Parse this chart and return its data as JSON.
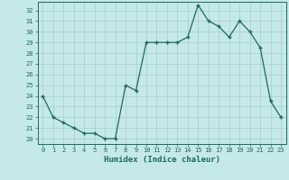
{
  "x": [
    0,
    1,
    2,
    3,
    4,
    5,
    6,
    7,
    8,
    9,
    10,
    11,
    12,
    13,
    14,
    15,
    16,
    17,
    18,
    19,
    20,
    21,
    22,
    23
  ],
  "y": [
    24,
    22,
    21.5,
    21,
    20.5,
    20.5,
    20,
    20,
    25,
    24.5,
    29,
    29,
    29,
    29,
    29.5,
    32.5,
    31,
    30.5,
    29.5,
    31,
    30,
    28.5,
    23.5,
    22
  ],
  "line_color": "#1a6b5e",
  "marker_color": "#1a6b5e",
  "bg_color": "#c5e8e8",
  "grid_color": "#a8cccc",
  "xlabel": "Humidex (Indice chaleur)",
  "ylabel_ticks": [
    20,
    21,
    22,
    23,
    24,
    25,
    26,
    27,
    28,
    29,
    30,
    31,
    32
  ],
  "ylim": [
    19.5,
    32.8
  ],
  "xlim": [
    -0.5,
    23.5
  ],
  "tick_color": "#1a6b5e",
  "font_family": "monospace"
}
